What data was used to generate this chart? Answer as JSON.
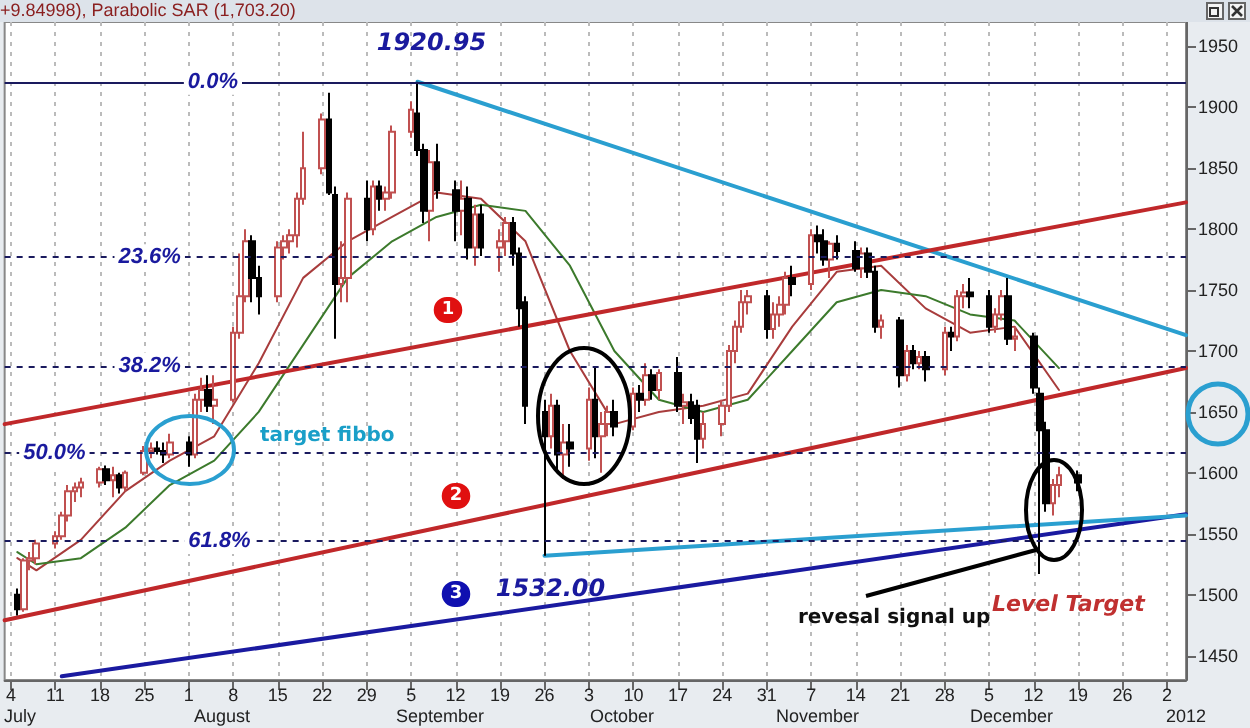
{
  "chart_data": {
    "type": "candlestick",
    "title": "+9.84998), Parabolic SAR (1,703.20)",
    "xlim": [
      "2011-07-03",
      "2012-01-05"
    ],
    "xticks": [
      {
        "value": "2011-07-04",
        "label": "4"
      },
      {
        "value": "2011-07-11",
        "label": "11"
      },
      {
        "value": "2011-07-18",
        "label": "18"
      },
      {
        "value": "2011-07-25",
        "label": "25"
      },
      {
        "value": "2011-08-01",
        "label": "1"
      },
      {
        "value": "2011-08-08",
        "label": "8"
      },
      {
        "value": "2011-08-15",
        "label": "15"
      },
      {
        "value": "2011-08-22",
        "label": "22"
      },
      {
        "value": "2011-08-29",
        "label": "29"
      },
      {
        "value": "2011-09-05",
        "label": "5"
      },
      {
        "value": "2011-09-12",
        "label": "12"
      },
      {
        "value": "2011-09-19",
        "label": "19"
      },
      {
        "value": "2011-09-26",
        "label": "26"
      },
      {
        "value": "2011-10-03",
        "label": "3"
      },
      {
        "value": "2011-10-10",
        "label": "10"
      },
      {
        "value": "2011-10-17",
        "label": "17"
      },
      {
        "value": "2011-10-24",
        "label": "24"
      },
      {
        "value": "2011-10-31",
        "label": "31"
      },
      {
        "value": "2011-11-07",
        "label": "7"
      },
      {
        "value": "2011-11-14",
        "label": "14"
      },
      {
        "value": "2011-11-21",
        "label": "21"
      },
      {
        "value": "2011-11-28",
        "label": "28"
      },
      {
        "value": "2011-12-05",
        "label": "5"
      },
      {
        "value": "2011-12-12",
        "label": "12"
      },
      {
        "value": "2011-12-19",
        "label": "19"
      },
      {
        "value": "2011-12-26",
        "label": "26"
      },
      {
        "value": "2012-01-02",
        "label": "2"
      }
    ],
    "ylim": [
      1430,
      1970
    ],
    "yticks": [
      1450,
      1500,
      1550,
      1600,
      1650,
      1700,
      1750,
      1800,
      1850,
      1900,
      1950
    ],
    "grid": "x",
    "series": [
      {
        "color": "#c05050",
        "x": [
          "2011-07-06",
          "2011-07-07",
          "2011-07-08",
          "2011-07-11",
          "2011-07-12",
          "2011-07-13",
          "2011-07-14",
          "2011-07-15",
          "2011-07-18",
          "2011-07-20",
          "2011-07-22",
          "2011-07-25",
          "2011-07-26",
          "2011-07-29",
          "2011-08-02",
          "2011-08-03",
          "2011-08-05",
          "2011-08-08",
          "2011-08-09",
          "2011-08-10",
          "2011-08-15",
          "2011-08-16",
          "2011-08-17",
          "2011-08-18",
          "2011-08-19",
          "2011-08-22",
          "2011-08-25",
          "2011-08-26",
          "2011-08-30",
          "2011-09-01",
          "2011-09-02",
          "2011-09-05",
          "2011-09-08",
          "2011-09-13",
          "2011-09-15",
          "2011-09-19",
          "2011-09-20",
          "2011-09-27",
          "2011-09-29",
          "2011-10-03",
          "2011-10-05",
          "2011-10-06",
          "2011-10-10",
          "2011-10-12",
          "2011-10-14",
          "2011-10-18",
          "2011-10-21",
          "2011-10-24",
          "2011-10-25",
          "2011-10-26",
          "2011-10-27",
          "2011-10-28",
          "2011-11-01",
          "2011-11-02",
          "2011-11-03",
          "2011-11-07",
          "2011-11-10",
          "2011-11-15",
          "2011-11-18",
          "2011-11-22",
          "2011-11-24",
          "2011-11-28",
          "2011-11-30",
          "2011-12-01",
          "2011-12-06",
          "2011-12-07",
          "2011-12-09",
          "2011-12-15",
          "2011-12-16"
        ],
        "ohlc": [
          [
            1488,
            1530,
            1486,
            1528
          ],
          [
            1528,
            1535,
            1520,
            1530
          ],
          [
            1530,
            1545,
            1525,
            1542
          ],
          [
            1542,
            1552,
            1538,
            1548
          ],
          [
            1548,
            1568,
            1545,
            1565
          ],
          [
            1565,
            1590,
            1560,
            1585
          ],
          [
            1585,
            1592,
            1576,
            1588
          ],
          [
            1588,
            1596,
            1580,
            1592
          ],
          [
            1592,
            1605,
            1588,
            1603
          ],
          [
            1594,
            1605,
            1580,
            1598
          ],
          [
            1588,
            1602,
            1585,
            1600
          ],
          [
            1600,
            1622,
            1598,
            1618
          ],
          [
            1618,
            1625,
            1612,
            1620
          ],
          [
            1615,
            1632,
            1612,
            1625
          ],
          [
            1615,
            1665,
            1612,
            1660
          ],
          [
            1660,
            1678,
            1650,
            1668
          ],
          [
            1655,
            1680,
            1640,
            1660
          ],
          [
            1660,
            1720,
            1658,
            1715
          ],
          [
            1715,
            1780,
            1710,
            1745
          ],
          [
            1745,
            1800,
            1740,
            1790
          ],
          [
            1745,
            1790,
            1740,
            1785
          ],
          [
            1785,
            1795,
            1775,
            1790
          ],
          [
            1790,
            1800,
            1780,
            1795
          ],
          [
            1795,
            1830,
            1785,
            1825
          ],
          [
            1825,
            1880,
            1820,
            1850
          ],
          [
            1850,
            1895,
            1845,
            1890
          ],
          [
            1755,
            1790,
            1740,
            1760
          ],
          [
            1760,
            1830,
            1740,
            1825
          ],
          [
            1800,
            1840,
            1795,
            1835
          ],
          [
            1825,
            1835,
            1815,
            1830
          ],
          [
            1830,
            1885,
            1825,
            1880
          ],
          [
            1880,
            1905,
            1875,
            1898
          ],
          [
            1815,
            1865,
            1790,
            1855
          ],
          [
            1815,
            1840,
            1795,
            1825
          ],
          [
            1785,
            1820,
            1770,
            1812
          ],
          [
            1785,
            1800,
            1765,
            1790
          ],
          [
            1790,
            1810,
            1778,
            1805
          ],
          [
            1630,
            1665,
            1620,
            1655
          ],
          [
            1615,
            1640,
            1595,
            1625
          ],
          [
            1620,
            1670,
            1610,
            1660
          ],
          [
            1630,
            1650,
            1600,
            1640
          ],
          [
            1640,
            1655,
            1630,
            1650
          ],
          [
            1638,
            1670,
            1635,
            1665
          ],
          [
            1660,
            1690,
            1655,
            1680
          ],
          [
            1668,
            1685,
            1660,
            1682
          ],
          [
            1655,
            1665,
            1640,
            1658
          ],
          [
            1628,
            1650,
            1620,
            1640
          ],
          [
            1640,
            1660,
            1630,
            1655
          ],
          [
            1655,
            1705,
            1650,
            1700
          ],
          [
            1700,
            1725,
            1690,
            1720
          ],
          [
            1720,
            1750,
            1715,
            1740
          ],
          [
            1740,
            1750,
            1730,
            1745
          ],
          [
            1718,
            1740,
            1710,
            1730
          ],
          [
            1730,
            1745,
            1720,
            1738
          ],
          [
            1738,
            1765,
            1730,
            1760
          ],
          [
            1755,
            1800,
            1750,
            1795
          ],
          [
            1775,
            1790,
            1760,
            1788
          ],
          [
            1768,
            1785,
            1760,
            1780
          ],
          [
            1720,
            1730,
            1710,
            1725
          ],
          [
            1680,
            1705,
            1675,
            1700
          ],
          [
            1690,
            1700,
            1685,
            1695
          ],
          [
            1685,
            1720,
            1680,
            1715
          ],
          [
            1712,
            1750,
            1708,
            1745
          ],
          [
            1745,
            1755,
            1735,
            1748
          ],
          [
            1720,
            1735,
            1715,
            1730
          ],
          [
            1730,
            1750,
            1725,
            1745
          ],
          [
            1710,
            1720,
            1700,
            1712
          ],
          [
            1575,
            1595,
            1565,
            1590
          ],
          [
            1590,
            1605,
            1580,
            1598
          ]
        ]
      },
      {
        "color": "#000000",
        "x": [
          "2011-07-05",
          "2011-07-19",
          "2011-07-21",
          "2011-07-27",
          "2011-07-28",
          "2011-08-01",
          "2011-08-04",
          "2011-08-11",
          "2011-08-12",
          "2011-08-23",
          "2011-08-24",
          "2011-08-29",
          "2011-08-31",
          "2011-09-06",
          "2011-09-07",
          "2011-09-09",
          "2011-09-12",
          "2011-09-14",
          "2011-09-16",
          "2011-09-21",
          "2011-09-22",
          "2011-09-23",
          "2011-09-26",
          "2011-09-28",
          "2011-09-30",
          "2011-10-04",
          "2011-10-07",
          "2011-10-11",
          "2011-10-13",
          "2011-10-17",
          "2011-10-19",
          "2011-10-20",
          "2011-10-31",
          "2011-11-04",
          "2011-11-08",
          "2011-11-09",
          "2011-11-11",
          "2011-11-14",
          "2011-11-16",
          "2011-11-17",
          "2011-11-21",
          "2011-11-23",
          "2011-11-25",
          "2011-11-29",
          "2011-12-02",
          "2011-12-05",
          "2011-12-08",
          "2011-12-12",
          "2011-12-13",
          "2011-12-14",
          "2011-12-19"
        ],
        "ohlc": [
          [
            1500,
            1505,
            1483,
            1488
          ],
          [
            1603,
            1606,
            1590,
            1594
          ],
          [
            1598,
            1600,
            1583,
            1588
          ],
          [
            1620,
            1626,
            1615,
            1618
          ],
          [
            1618,
            1625,
            1608,
            1615
          ],
          [
            1625,
            1630,
            1605,
            1615
          ],
          [
            1668,
            1680,
            1650,
            1655
          ],
          [
            1790,
            1795,
            1740,
            1760
          ],
          [
            1760,
            1770,
            1730,
            1745
          ],
          [
            1890,
            1912,
            1828,
            1830
          ],
          [
            1828,
            1835,
            1710,
            1755
          ],
          [
            1825,
            1840,
            1790,
            1800
          ],
          [
            1835,
            1840,
            1815,
            1825
          ],
          [
            1895,
            1920.95,
            1860,
            1865
          ],
          [
            1865,
            1870,
            1805,
            1815
          ],
          [
            1855,
            1870,
            1825,
            1832
          ],
          [
            1832,
            1840,
            1790,
            1815
          ],
          [
            1825,
            1835,
            1775,
            1785
          ],
          [
            1812,
            1820,
            1778,
            1785
          ],
          [
            1805,
            1810,
            1770,
            1780
          ],
          [
            1780,
            1785,
            1720,
            1735
          ],
          [
            1740,
            1745,
            1640,
            1655
          ],
          [
            1650,
            1660,
            1532,
            1630
          ],
          [
            1655,
            1660,
            1600,
            1615
          ],
          [
            1625,
            1640,
            1605,
            1620
          ],
          [
            1660,
            1686,
            1612,
            1630
          ],
          [
            1650,
            1660,
            1630,
            1638
          ],
          [
            1665,
            1672,
            1650,
            1660
          ],
          [
            1680,
            1685,
            1660,
            1668
          ],
          [
            1682,
            1695,
            1650,
            1655
          ],
          [
            1658,
            1665,
            1640,
            1645
          ],
          [
            1655,
            1660,
            1608,
            1628
          ],
          [
            1745,
            1750,
            1710,
            1718
          ],
          [
            1760,
            1770,
            1745,
            1755
          ],
          [
            1795,
            1803,
            1780,
            1790
          ],
          [
            1790,
            1800,
            1770,
            1775
          ],
          [
            1788,
            1795,
            1775,
            1782
          ],
          [
            1782,
            1790,
            1765,
            1768
          ],
          [
            1780,
            1785,
            1760,
            1765
          ],
          [
            1765,
            1770,
            1715,
            1720
          ],
          [
            1725,
            1728,
            1670,
            1680
          ],
          [
            1700,
            1705,
            1685,
            1690
          ],
          [
            1695,
            1700,
            1675,
            1685
          ],
          [
            1715,
            1720,
            1700,
            1712
          ],
          [
            1748,
            1760,
            1735,
            1745
          ],
          [
            1745,
            1750,
            1715,
            1720
          ],
          [
            1745,
            1760,
            1705,
            1710
          ],
          [
            1712,
            1715,
            1665,
            1670
          ],
          [
            1665,
            1670,
            1517,
            1635
          ],
          [
            1635,
            1642,
            1568,
            1575
          ],
          [
            1598,
            1602,
            1585,
            1592
          ]
        ]
      },
      {
        "type": "line",
        "color": "#a83c3c",
        "x": [
          "2011-07-05",
          "2011-07-08",
          "2011-07-15",
          "2011-07-22",
          "2011-07-29",
          "2011-08-05",
          "2011-08-12",
          "2011-08-19",
          "2011-08-26",
          "2011-09-02",
          "2011-09-09",
          "2011-09-16",
          "2011-09-23",
          "2011-09-30",
          "2011-10-07",
          "2011-10-14",
          "2011-10-21",
          "2011-10-28",
          "2011-11-04",
          "2011-11-11",
          "2011-11-18",
          "2011-11-25",
          "2011-12-02",
          "2011-12-09",
          "2011-12-16"
        ],
        "values": [
          1530,
          1520,
          1545,
          1585,
          1610,
          1630,
          1690,
          1760,
          1790,
          1810,
          1830,
          1825,
          1790,
          1700,
          1640,
          1650,
          1655,
          1665,
          1720,
          1765,
          1770,
          1735,
          1715,
          1720,
          1668
        ]
      },
      {
        "type": "line",
        "color": "#3c7a2c",
        "x": [
          "2011-07-05",
          "2011-07-08",
          "2011-07-15",
          "2011-07-22",
          "2011-07-29",
          "2011-08-05",
          "2011-08-12",
          "2011-08-19",
          "2011-08-26",
          "2011-09-02",
          "2011-09-09",
          "2011-09-16",
          "2011-09-23",
          "2011-09-30",
          "2011-10-07",
          "2011-10-14",
          "2011-10-21",
          "2011-10-28",
          "2011-11-04",
          "2011-11-11",
          "2011-11-18",
          "2011-11-25",
          "2011-12-02",
          "2011-12-09",
          "2011-12-16"
        ],
        "values": [
          1535,
          1525,
          1530,
          1555,
          1590,
          1610,
          1650,
          1705,
          1760,
          1790,
          1810,
          1820,
          1815,
          1770,
          1700,
          1660,
          1650,
          1660,
          1700,
          1740,
          1750,
          1745,
          1730,
          1725,
          1686
        ]
      },
      {
        "type": "line",
        "color": "#2a9fd0",
        "x": [
          "2011-09-06",
          "2012-01-05"
        ],
        "values": [
          1920.95,
          1713
        ]
      },
      {
        "type": "line",
        "color": "#c0282a",
        "x": [
          "2011-07-03",
          "2012-01-05"
        ],
        "values": [
          1640,
          1822
        ]
      },
      {
        "type": "line",
        "color": "#c0282a",
        "x": [
          "2011-07-03",
          "2012-01-05"
        ],
        "values": [
          1479,
          1686
        ]
      },
      {
        "type": "line",
        "color": "#1a1aa0",
        "x": [
          "2011-07-12",
          "2012-01-05"
        ],
        "values": [
          1433,
          1566
        ]
      },
      {
        "type": "line",
        "color": "#2a9fd0",
        "x": [
          "2011-09-26",
          "2012-01-05"
        ],
        "values": [
          1532,
          1565
        ]
      }
    ],
    "ref_lines": [
      {
        "axis": "y",
        "value": 1920.95,
        "color": "#1a1a5e",
        "line_style": "solid"
      },
      {
        "axis": "y",
        "value": 1777,
        "color": "#1a1a5e",
        "line_style": "dashed"
      },
      {
        "axis": "y",
        "value": 1688,
        "color": "#1a1a5e",
        "line_style": "dashed"
      },
      {
        "axis": "y",
        "value": 1616,
        "color": "#1a1a5e",
        "line_style": "dashed"
      },
      {
        "axis": "y",
        "value": 1544,
        "color": "#1a1a5e",
        "line_style": "dashed"
      }
    ],
    "annotations": [
      {
        "text": "1920.95",
        "x": "2011-09-06",
        "y": 1920.95
      },
      {
        "text": "1532.00",
        "x": "2011-09-26",
        "y": 1532
      },
      {
        "text": "0.0%",
        "x": "2011-08-10",
        "y": 1920.95
      },
      {
        "text": "23.6%",
        "x": "2011-08-01",
        "y": 1777
      },
      {
        "text": "38.2%",
        "x": "2011-08-01",
        "y": 1688
      },
      {
        "text": "50.0%",
        "x": "2011-07-17",
        "y": 1616
      },
      {
        "text": "61.8%",
        "x": "2011-08-12",
        "y": 1544
      },
      {
        "text": "revesal signal up",
        "x": "2011-12-13",
        "y": 1540
      },
      "target fibbo",
      "Level Target",
      "1",
      "2",
      "3",
      "July",
      "August",
      "September",
      "October",
      "November",
      "December",
      "2012"
    ]
  }
}
